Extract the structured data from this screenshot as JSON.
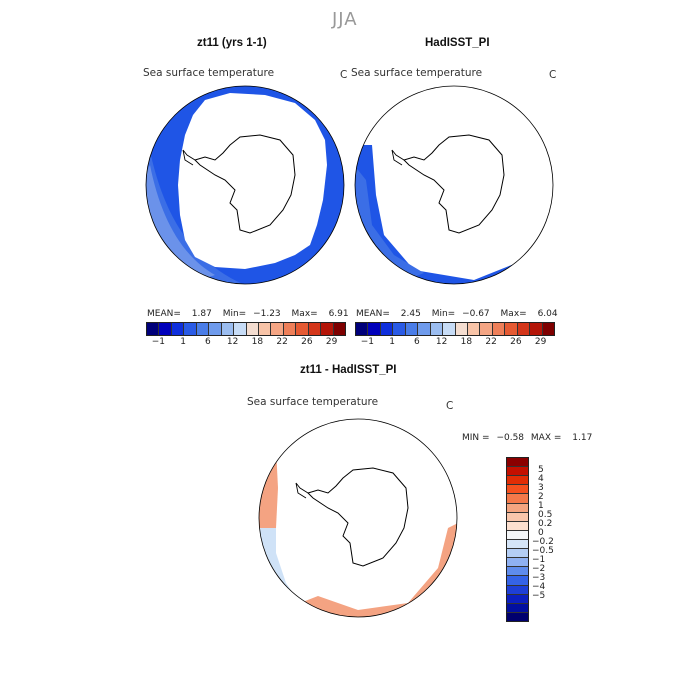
{
  "season": "JJA",
  "panels": [
    {
      "title": "zt11 (yrs 1-1)",
      "variable": "Sea surface temperature",
      "unit": "C",
      "stats": {
        "mean_label": "MEAN=",
        "mean": "1.87",
        "min_label": "Min=",
        "min": "−1.23",
        "max_label": "Max=",
        "max": "6.91"
      }
    },
    {
      "title": "HadISST_PI",
      "variable": "Sea surface temperature",
      "unit": "C",
      "stats": {
        "mean_label": "MEAN=",
        "mean": "2.45",
        "min_label": "Min=",
        "min": "−0.67",
        "max_label": "Max=",
        "max": "6.04"
      }
    }
  ],
  "abs_colorbar": {
    "colors": [
      "#00007a",
      "#0000bb",
      "#0f2fdc",
      "#2a5be6",
      "#4a7de8",
      "#6f9bec",
      "#9bbdf0",
      "#c7dcf6",
      "#f4ddd0",
      "#f8c4a8",
      "#f4a584",
      "#ee7f59",
      "#e55a33",
      "#d4361a",
      "#b41508",
      "#7e0000"
    ],
    "tick_labels": [
      "−1",
      "1",
      "6",
      "12",
      "18",
      "22",
      "26",
      "29"
    ]
  },
  "diff_panel": {
    "title": "zt11 - HadISST_PI",
    "variable": "Sea surface temperature",
    "unit": "C",
    "stats": {
      "min_label": "MIN =",
      "min": "−0.58",
      "max_label": "MAX =",
      "max": "1.17"
    }
  },
  "diff_colorbar": {
    "colors": [
      "#8b0000",
      "#c41000",
      "#e12d05",
      "#f5501e",
      "#f4794a",
      "#f4a580",
      "#f9c6ab",
      "#fde0cf",
      "#f4f6f8",
      "#d5e5f8",
      "#b4cef5",
      "#8fb1f2",
      "#5f8cec",
      "#3563e6",
      "#1e3fd6",
      "#0c1fc0",
      "#020fa0",
      "#00006e"
    ],
    "tick_labels": [
      "5",
      "4",
      "3",
      "2",
      "1",
      "0.5",
      "0.2",
      "0",
      "−0.2",
      "−0.5",
      "−1",
      "−2",
      "−3",
      "−4",
      "−5"
    ]
  },
  "map_legend": {
    "land": "white",
    "deep_ocean": "#1f55e6",
    "mid_ocean": "#3b6ee6",
    "light_ocean": "#6b92ea",
    "warm_anomaly": "#f4a382",
    "cool_anomaly": "#cfe2f7"
  }
}
